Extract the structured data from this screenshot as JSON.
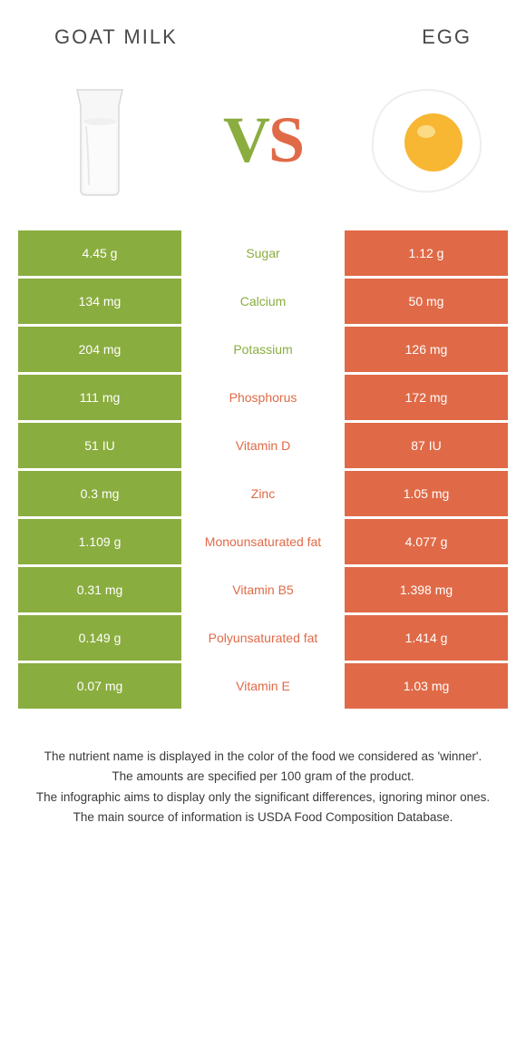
{
  "colors": {
    "green": "#8aad3f",
    "orange": "#e06a47",
    "text": "#333333",
    "white": "#ffffff"
  },
  "header": {
    "left_title": "GOAT MILK",
    "right_title": "EGG"
  },
  "vs": {
    "v": "V",
    "s": "S"
  },
  "table": {
    "left_color": "#8aad3f",
    "right_color": "#e06a47",
    "rows": [
      {
        "left": "4.45 g",
        "label": "Sugar",
        "right": "1.12 g",
        "winner": "left"
      },
      {
        "left": "134 mg",
        "label": "Calcium",
        "right": "50 mg",
        "winner": "left"
      },
      {
        "left": "204 mg",
        "label": "Potassium",
        "right": "126 mg",
        "winner": "left"
      },
      {
        "left": "111 mg",
        "label": "Phosphorus",
        "right": "172 mg",
        "winner": "right"
      },
      {
        "left": "51 IU",
        "label": "Vitamin D",
        "right": "87 IU",
        "winner": "right"
      },
      {
        "left": "0.3 mg",
        "label": "Zinc",
        "right": "1.05 mg",
        "winner": "right"
      },
      {
        "left": "1.109 g",
        "label": "Monounsaturated fat",
        "right": "4.077 g",
        "winner": "right"
      },
      {
        "left": "0.31 mg",
        "label": "Vitamin B5",
        "right": "1.398 mg",
        "winner": "right"
      },
      {
        "left": "0.149 g",
        "label": "Polyunsaturated fat",
        "right": "1.414 g",
        "winner": "right"
      },
      {
        "left": "0.07 mg",
        "label": "Vitamin E",
        "right": "1.03 mg",
        "winner": "right"
      }
    ]
  },
  "footer": {
    "line1": "The nutrient name is displayed in the color of the food we considered as 'winner'.",
    "line2": "The amounts are specified per 100 gram of the product.",
    "line3": "The infographic aims to display only the significant differences, ignoring minor ones.",
    "line4": "The main source of information is USDA Food Composition Database."
  }
}
